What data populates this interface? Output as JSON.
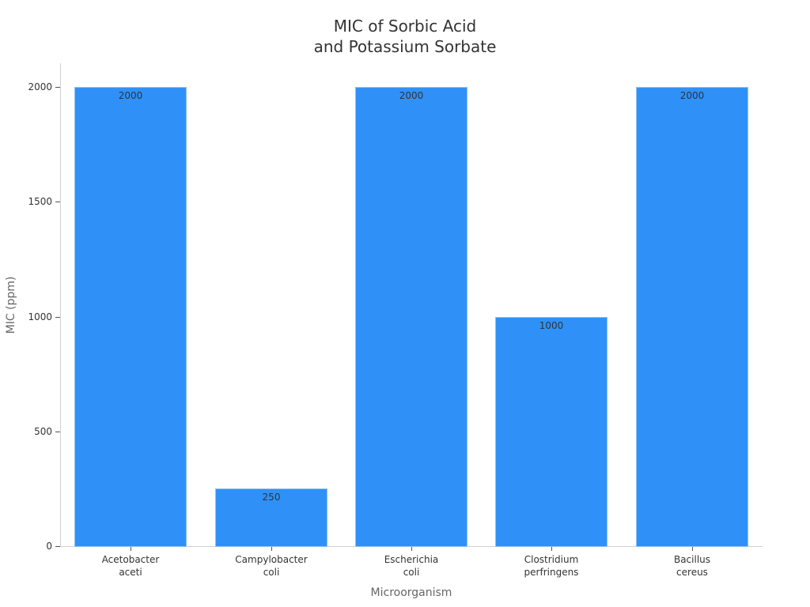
{
  "chart_data": {
    "type": "bar",
    "title": "MIC of Sorbic Acid\nand Potassium Sorbate",
    "title_lines": [
      "MIC of Sorbic Acid",
      "and Potassium Sorbate"
    ],
    "xlabel": "Microorganism",
    "ylabel": "MIC (ppm)",
    "categories": [
      "Acetobacter aceti",
      "Campylobacter coli",
      "Escherichia coli",
      "Clostridium perfringens",
      "Bacillus cereus"
    ],
    "category_lines": [
      [
        "Acetobacter",
        "aceti"
      ],
      [
        "Campylobacter",
        "coli"
      ],
      [
        "Escherichia",
        "coli"
      ],
      [
        "Clostridium",
        "perfringens"
      ],
      [
        "Bacillus",
        "cereus"
      ]
    ],
    "values": [
      2000,
      250,
      2000,
      1000,
      2000
    ],
    "data_labels": [
      "2000",
      "250",
      "2000",
      "1000",
      "2000"
    ],
    "ylim": [
      0,
      2100
    ],
    "yticks": [
      0,
      500,
      1000,
      1500,
      2000
    ],
    "grid": false,
    "legend": null,
    "bar_color": "#2f91f8"
  }
}
